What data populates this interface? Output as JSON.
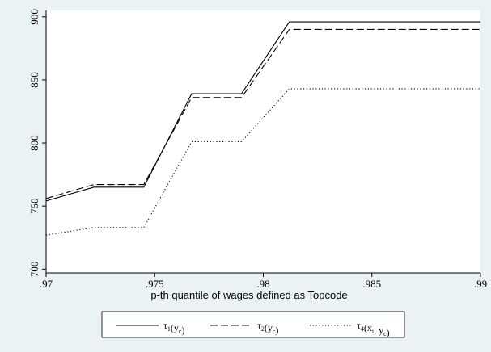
{
  "chart_data": {
    "type": "line",
    "title": "",
    "xlabel": "p-th quantile of wages defined as Topcode",
    "ylabel": "",
    "xlim": [
      0.97,
      0.99
    ],
    "ylim": [
      697,
      905
    ],
    "x_ticks": [
      0.97,
      0.975,
      0.98,
      0.985,
      0.99
    ],
    "x_tick_labels": [
      ".97",
      ".975",
      ".98",
      ".985",
      ".99"
    ],
    "y_ticks": [
      700,
      750,
      800,
      850,
      900
    ],
    "y_tick_labels": [
      "700",
      "750",
      "800",
      "850",
      "900"
    ],
    "grid": false,
    "legend_position": "bottom",
    "series": [
      {
        "name": "τ1(yc)",
        "label_main": "τ",
        "label_sub1": "1",
        "label_paren_open": "(y",
        "label_sub2": "c",
        "label_paren_close": ")",
        "style": "solid",
        "x": [
          0.97,
          0.9722,
          0.9745,
          0.9767,
          0.979,
          0.9812,
          0.99
        ],
        "y": [
          754,
          765,
          765,
          839,
          839,
          896,
          896
        ]
      },
      {
        "name": "τ2(yc)",
        "label_main": "τ",
        "label_sub1": "2",
        "label_paren_open": "(y",
        "label_sub2": "c",
        "label_paren_close": ")",
        "style": "dashed",
        "x": [
          0.97,
          0.9722,
          0.9745,
          0.9767,
          0.979,
          0.9812,
          0.99
        ],
        "y": [
          756,
          767,
          767,
          836,
          836,
          890,
          890
        ]
      },
      {
        "name": "τ4(xi, yc)",
        "label_main": "τ",
        "label_sub1": "4",
        "label_paren_open": "(x",
        "label_sub2": "i",
        "label_mid": ", y",
        "label_sub3": "c",
        "label_paren_close": ")",
        "style": "dotted",
        "x": [
          0.97,
          0.9722,
          0.9745,
          0.9767,
          0.979,
          0.9812,
          0.99
        ],
        "y": [
          727,
          733,
          733,
          801,
          801,
          843,
          843
        ]
      }
    ]
  }
}
